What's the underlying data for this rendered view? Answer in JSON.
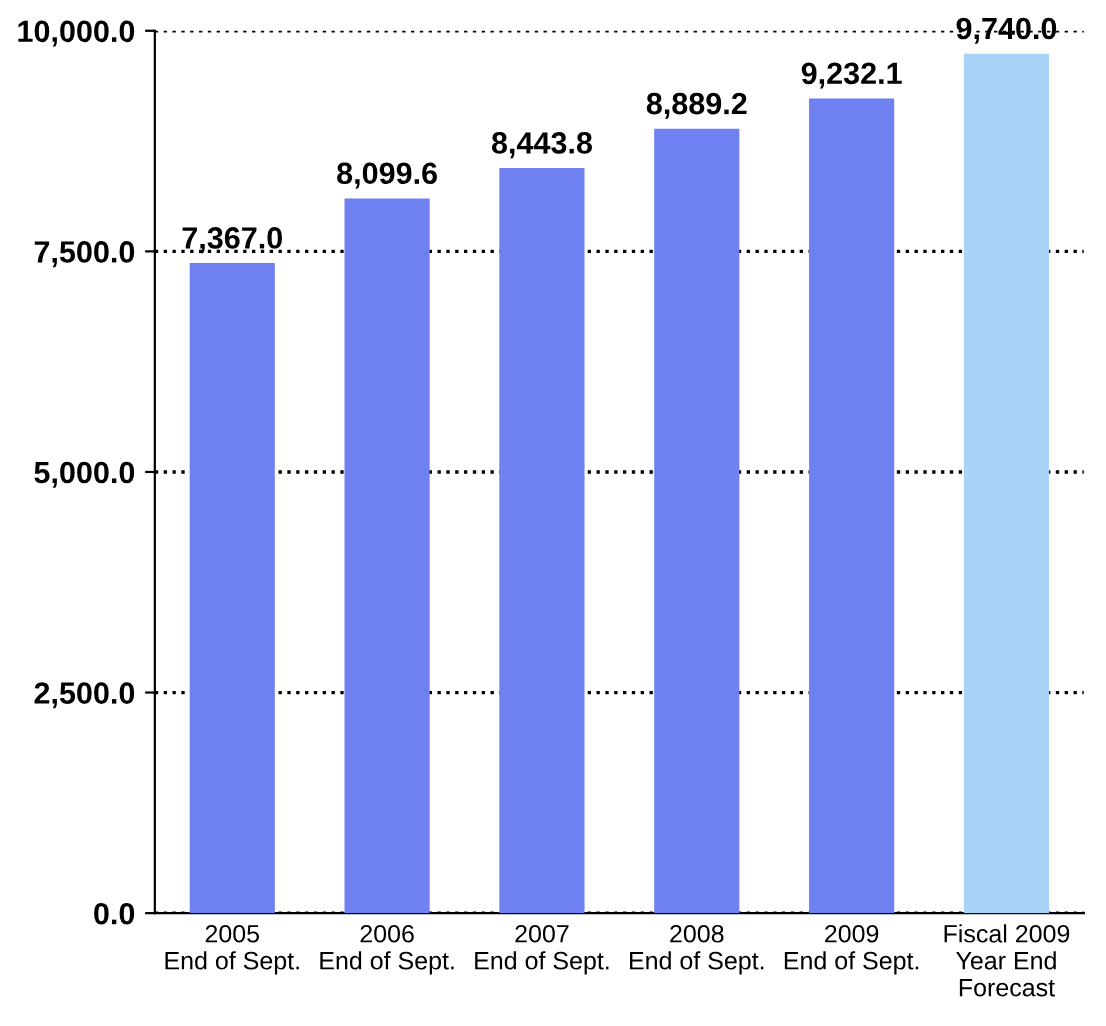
{
  "chart_data": {
    "type": "bar",
    "categories": [
      "2005\nEnd of Sept.",
      "2006\nEnd of Sept.",
      "2007\nEnd of Sept.",
      "2008\nEnd of Sept.",
      "2009\nEnd of Sept.",
      "Fiscal 2009\nYear End\nForecast"
    ],
    "values": [
      7367.0,
      8099.6,
      8443.8,
      8889.2,
      9232.1,
      9740.0
    ],
    "colors": [
      "#6f80f0",
      "#6f80f0",
      "#6f80f0",
      "#6f80f0",
      "#6f80f0",
      "#a9d2f8"
    ],
    "value_labels": [
      "7,367.0",
      "8,099.6",
      "8,443.8",
      "8,889.2",
      "9,232.1",
      "9,740.0"
    ],
    "ylim": [
      0,
      10000
    ],
    "yticks": [
      {
        "value": 0,
        "label": "0.0"
      },
      {
        "value": 2500,
        "label": "2,500.0"
      },
      {
        "value": 5000,
        "label": "5,000.0"
      },
      {
        "value": 7500,
        "label": "7,500.0"
      },
      {
        "value": 10000,
        "label": "10,000.0"
      }
    ],
    "grid": "y",
    "line_style": "dotted"
  }
}
